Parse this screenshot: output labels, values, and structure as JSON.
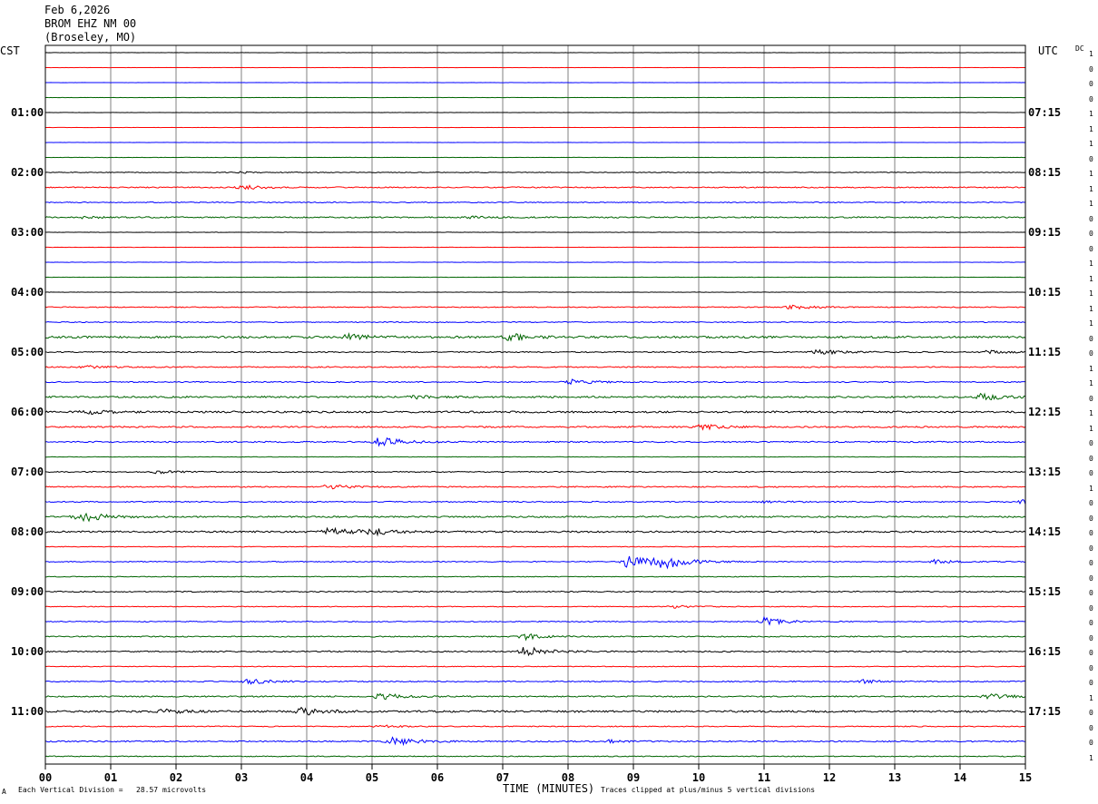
{
  "header": {
    "date": "Feb 6,2026",
    "station": "BROM EHZ NM 00",
    "location": "(Broseley, MO)"
  },
  "left_tz": "CST",
  "right_tz": "UTC",
  "dc_label": "DC",
  "footer": {
    "scale_note": "Each Vertical Division =   28.57 microvolts",
    "xlabel": "TIME (MINUTES)",
    "clip_note": "Traces clipped at plus/minus 5 vertical divisions",
    "corner_mark": "A"
  },
  "colors": {
    "trace_cycle": [
      "#000000",
      "#ff0000",
      "#0000ff",
      "#006400"
    ],
    "grid": "#808080"
  },
  "chart_data": {
    "type": "line",
    "title": "",
    "xlabel": "TIME (MINUTES)",
    "xlim": [
      0,
      15
    ],
    "x_ticks": [
      "00",
      "01",
      "02",
      "03",
      "04",
      "05",
      "06",
      "07",
      "08",
      "09",
      "10",
      "11",
      "12",
      "13",
      "14",
      "15"
    ],
    "trace_count": 48,
    "trace_minutes": 15,
    "left_hour_labels": [
      "01:00",
      "02:00",
      "03:00",
      "04:00",
      "05:00",
      "06:00",
      "07:00",
      "08:00",
      "09:00",
      "10:00",
      "11:00"
    ],
    "right_hour_labels": [
      "07:15",
      "08:15",
      "09:15",
      "10:15",
      "11:15",
      "12:15",
      "13:15",
      "14:15",
      "15:15",
      "16:15",
      "17:15"
    ],
    "hour_label_traces": [
      4,
      8,
      12,
      16,
      20,
      24,
      28,
      32,
      36,
      40,
      44
    ],
    "dc_offsets": [
      "1",
      "0",
      "0",
      "0",
      "1",
      "1",
      "1",
      "0",
      "1",
      "1",
      "1",
      "0",
      "0",
      "0",
      "1",
      "1",
      "1",
      "1",
      "1",
      "0",
      "0",
      "1",
      "1",
      "0",
      "1",
      "1",
      "0",
      "0",
      "0",
      "1",
      "0",
      "0",
      "0",
      "0",
      "0",
      "0",
      "0",
      "0",
      "0",
      "0",
      "0",
      "0",
      "0",
      "1",
      "0",
      "0",
      "0",
      "1"
    ],
    "noise_level": [
      0.15,
      0.1,
      0.1,
      0.15,
      0.15,
      0.1,
      0.1,
      0.2,
      0.4,
      0.6,
      0.5,
      0.7,
      0.2,
      0.2,
      0.2,
      0.2,
      0.2,
      0.5,
      0.5,
      1.1,
      0.6,
      0.6,
      0.6,
      0.9,
      1.0,
      0.8,
      0.7,
      0.3,
      0.6,
      0.6,
      0.6,
      0.8,
      0.9,
      0.4,
      0.5,
      0.4,
      0.6,
      0.4,
      0.5,
      0.6,
      0.7,
      0.4,
      0.6,
      0.7,
      1.0,
      0.5,
      0.7,
      0.5
    ],
    "events": [
      {
        "trace": 8,
        "minute": 2.9,
        "amplitude": 1.0
      },
      {
        "trace": 9,
        "minute": 3.0,
        "amplitude": 2.5
      },
      {
        "trace": 11,
        "minute": 0.5,
        "amplitude": 1.2
      },
      {
        "trace": 11,
        "minute": 6.5,
        "amplitude": 1.4
      },
      {
        "trace": 17,
        "minute": 11.4,
        "amplitude": 2.5
      },
      {
        "trace": 19,
        "minute": 4.6,
        "amplitude": 3.5
      },
      {
        "trace": 19,
        "minute": 7.1,
        "amplitude": 4.5
      },
      {
        "trace": 20,
        "minute": 11.8,
        "amplitude": 3.0
      },
      {
        "trace": 20,
        "minute": 14.4,
        "amplitude": 2.0
      },
      {
        "trace": 21,
        "minute": 0.6,
        "amplitude": 1.6
      },
      {
        "trace": 22,
        "minute": 8.0,
        "amplitude": 3.0
      },
      {
        "trace": 23,
        "minute": 5.6,
        "amplitude": 2.0
      },
      {
        "trace": 23,
        "minute": 14.3,
        "amplitude": 4.0
      },
      {
        "trace": 24,
        "minute": 0.6,
        "amplitude": 2.5
      },
      {
        "trace": 25,
        "minute": 10.0,
        "amplitude": 3.0
      },
      {
        "trace": 26,
        "minute": 5.1,
        "amplitude": 6.0
      },
      {
        "trace": 28,
        "minute": 1.7,
        "amplitude": 1.6
      },
      {
        "trace": 29,
        "minute": 4.3,
        "amplitude": 3.0
      },
      {
        "trace": 30,
        "minute": 11.0,
        "amplitude": 1.6
      },
      {
        "trace": 30,
        "minute": 15.0,
        "amplitude": 7.0
      },
      {
        "trace": 31,
        "minute": 0.5,
        "amplitude": 7.5
      },
      {
        "trace": 32,
        "minute": 4.3,
        "amplitude": 4.5
      },
      {
        "trace": 32,
        "minute": 4.9,
        "amplitude": 4.5
      },
      {
        "trace": 34,
        "minute": 8.9,
        "amplitude": 8.5
      },
      {
        "trace": 34,
        "minute": 9.4,
        "amplitude": 9.0
      },
      {
        "trace": 34,
        "minute": 13.6,
        "amplitude": 2.0
      },
      {
        "trace": 37,
        "minute": 9.6,
        "amplitude": 1.6
      },
      {
        "trace": 38,
        "minute": 11.0,
        "amplitude": 4.5
      },
      {
        "trace": 39,
        "minute": 7.3,
        "amplitude": 3.5
      },
      {
        "trace": 40,
        "minute": 7.3,
        "amplitude": 6.0
      },
      {
        "trace": 42,
        "minute": 3.1,
        "amplitude": 3.0
      },
      {
        "trace": 42,
        "minute": 12.5,
        "amplitude": 1.8
      },
      {
        "trace": 43,
        "minute": 5.1,
        "amplitude": 4.0
      },
      {
        "trace": 43,
        "minute": 14.4,
        "amplitude": 3.0
      },
      {
        "trace": 44,
        "minute": 1.8,
        "amplitude": 2.5
      },
      {
        "trace": 44,
        "minute": 3.9,
        "amplitude": 5.5
      },
      {
        "trace": 45,
        "minute": 5.1,
        "amplitude": 1.5
      },
      {
        "trace": 46,
        "minute": 5.3,
        "amplitude": 5.0
      },
      {
        "trace": 46,
        "minute": 8.6,
        "amplitude": 1.5
      }
    ]
  }
}
